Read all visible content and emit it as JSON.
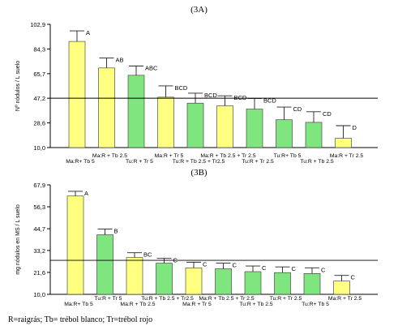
{
  "colors": {
    "yellow": "#ffff80",
    "green": "#7fe57f",
    "bar_stroke": "#333333",
    "reference_line": "#000000"
  },
  "footnote": "R=raigrás; Tb= trébol blanco; Tr=trébol rojo",
  "chart_data": [
    {
      "type": "bar",
      "panel_label": "(3A)",
      "ylabel": "Nº nódulos / L suelo",
      "yticks": [
        "102,9",
        "84,3",
        "65,7",
        "47,2",
        "28,6",
        "10,0"
      ],
      "ylim": [
        10.0,
        102.9
      ],
      "reference_line": 47.2,
      "grid": false,
      "categories": [
        "Ma:R+ Tb 5",
        "Ma:R + Tb 2.5",
        "Tu:R + Tr 5",
        "Ma:R + Tr 5",
        "Tu:R + Tb 2.5 + Tr2.5",
        "Ma:R + Tb 2.5 + Tr 2.5",
        "Tu:R + Tr 2.5",
        "Tu:R+ Tb 5",
        "Tu:R + Tb 2.5",
        "Ma:R + Tr 2.5"
      ],
      "values": [
        90.0,
        70.0,
        64.5,
        48.0,
        43.5,
        41.5,
        39.0,
        31.0,
        29.0,
        17.0
      ],
      "errors": [
        8.0,
        7.5,
        7.0,
        8.5,
        7.5,
        7.5,
        8.0,
        9.5,
        8.0,
        9.5
      ],
      "colors": [
        "yellow",
        "yellow",
        "green",
        "yellow",
        "green",
        "yellow",
        "green",
        "green",
        "green",
        "yellow"
      ],
      "letters": [
        "A",
        "AB",
        "ABC",
        "BCD",
        "BCD",
        "BCD",
        "BCD",
        "CD",
        "CD",
        "D"
      ]
    },
    {
      "type": "bar",
      "panel_label": "(3B)",
      "ylabel": "mg nódulos en MS / L suelo",
      "yticks": [
        "67,9",
        "56,3",
        "44,7",
        "33,2",
        "21,6",
        "10,0"
      ],
      "ylim": [
        10.0,
        67.9
      ],
      "reference_line": 28.0,
      "grid": false,
      "categories": [
        "Ma:R+ Tb 5",
        "Tu:R + Tr 5",
        "Ma:R + Tb 2.5",
        "Tu:R + Tb 2.5 + Tr2.5",
        "Ma:R + Tr 5",
        "Ma:R + Tb 2.5 + Tr 2.5",
        "Tu:R + Tb 2.5",
        "Tu:R + Tr 2.5",
        "Tu:R+ Tb 5",
        "Ma:R + Tr 2.5"
      ],
      "values": [
        62.0,
        41.5,
        29.5,
        26.5,
        24.0,
        23.5,
        22.0,
        21.5,
        21.0,
        17.0
      ],
      "errors": [
        2.5,
        3.0,
        2.5,
        2.5,
        3.0,
        3.0,
        3.0,
        3.0,
        3.0,
        3.0
      ],
      "colors": [
        "yellow",
        "green",
        "yellow",
        "green",
        "yellow",
        "green",
        "green",
        "green",
        "green",
        "yellow"
      ],
      "letters": [
        "A",
        "B",
        "BC",
        "C",
        "C",
        "C",
        "C",
        "C",
        "C",
        "C"
      ]
    }
  ]
}
